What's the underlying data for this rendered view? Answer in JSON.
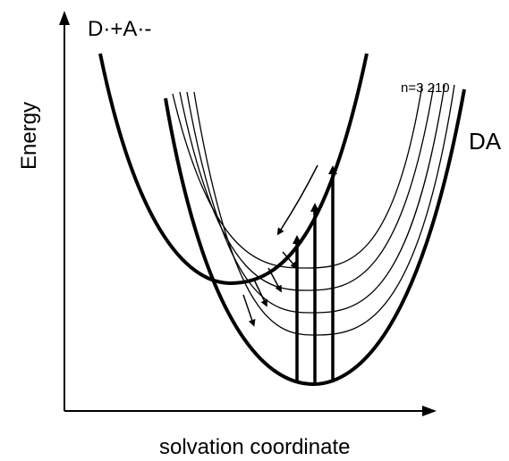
{
  "labels": {
    "y_axis": "Energy",
    "x_axis": "solvation coordinate",
    "product_state": "D·+A·-",
    "ground_state": "DA",
    "vib_levels": "n=3 210"
  },
  "colors": {
    "ink": "#000000",
    "background": "#ffffff"
  }
}
